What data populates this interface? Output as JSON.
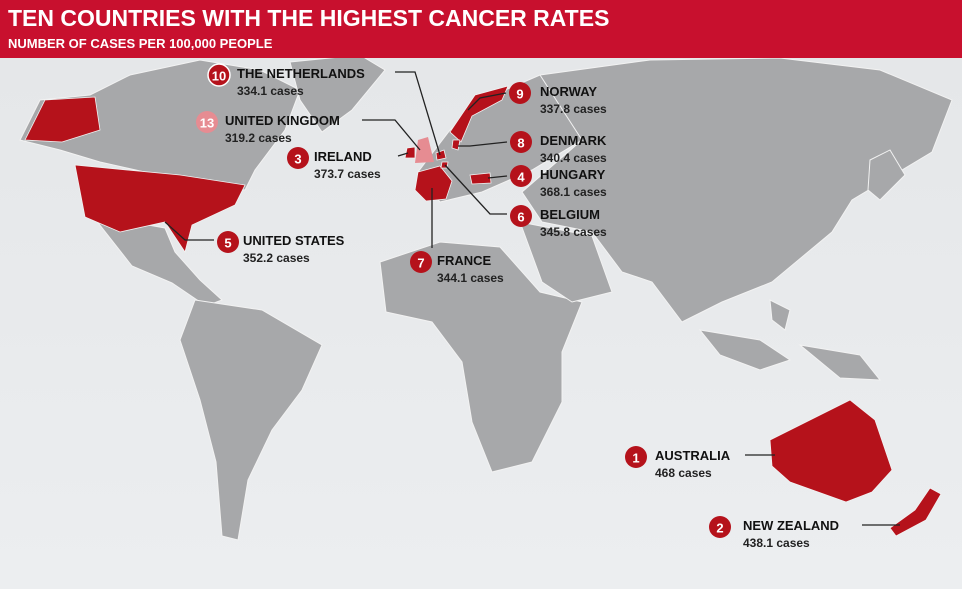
{
  "header": {
    "title": "TEN COUNTRIES WITH THE HIGHEST CANCER RATES",
    "subtitle": "NUMBER OF CASES PER 100,000 PEOPLE"
  },
  "countries": [
    {
      "rank": 10,
      "name": "THE NETHERLANDS",
      "cases": "334.1 cases"
    },
    {
      "rank": 13,
      "name": "UNITED KINGDOM",
      "cases": "319.2 cases"
    },
    {
      "rank": 3,
      "name": "IRELAND",
      "cases": "373.7 cases"
    },
    {
      "rank": 5,
      "name": "UNITED STATES",
      "cases": "352.2 cases"
    },
    {
      "rank": 7,
      "name": "FRANCE",
      "cases": "344.1 cases"
    },
    {
      "rank": 9,
      "name": "NORWAY",
      "cases": "337.8 cases"
    },
    {
      "rank": 8,
      "name": "DENMARK",
      "cases": "340.4 cases"
    },
    {
      "rank": 4,
      "name": "HUNGARY",
      "cases": "368.1 cases"
    },
    {
      "rank": 6,
      "name": "BELGIUM",
      "cases": "345.8 cases"
    },
    {
      "rank": 1,
      "name": "AUSTRALIA",
      "cases": "468 cases"
    },
    {
      "rank": 2,
      "name": "NEW ZEALAND",
      "cases": "438.1 cases"
    }
  ]
}
